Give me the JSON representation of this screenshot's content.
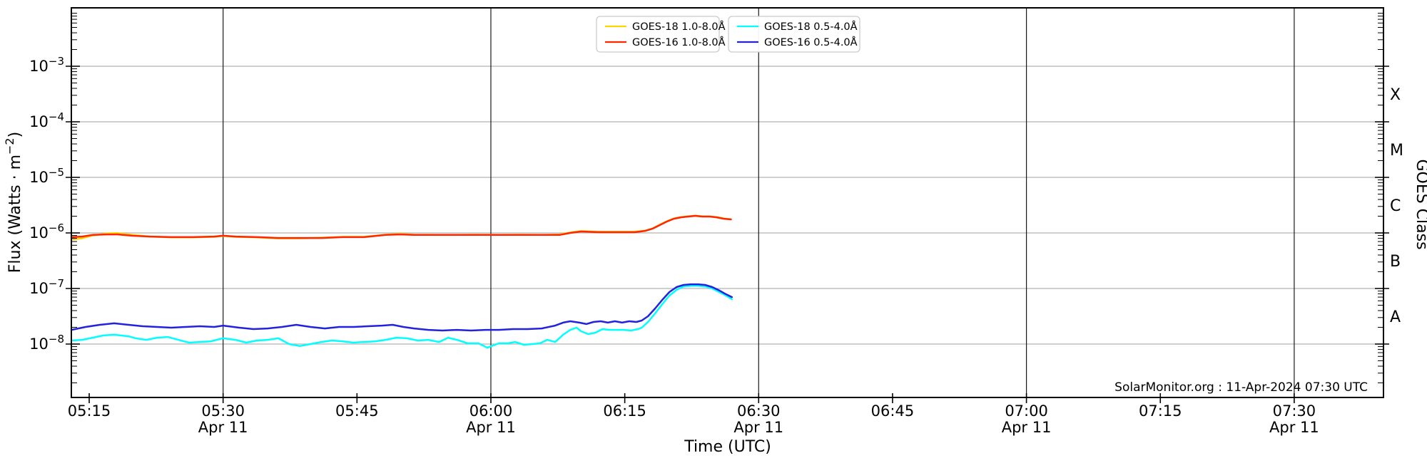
{
  "annotation": "SolarMonitor.org : 11-Apr-2024 07:30 UTC",
  "axes": {
    "x_label": "Time (UTC)",
    "y_left_label": {
      "prefix": "Flux (Watts · m",
      "sup": "−2",
      "suffix": ")"
    },
    "y_right_label": "GOES Class",
    "x_ticks": [
      {
        "t": 15,
        "label": "05:15",
        "date": null
      },
      {
        "t": 30,
        "label": "05:30",
        "date": "Apr 11"
      },
      {
        "t": 45,
        "label": "05:45",
        "date": null
      },
      {
        "t": 60,
        "label": "06:00",
        "date": "Apr 11"
      },
      {
        "t": 75,
        "label": "06:15",
        "date": null
      },
      {
        "t": 90,
        "label": "06:30",
        "date": "Apr 11"
      },
      {
        "t": 105,
        "label": "06:45",
        "date": null
      },
      {
        "t": 120,
        "label": "07:00",
        "date": "Apr 11"
      },
      {
        "t": 135,
        "label": "07:15",
        "date": null
      },
      {
        "t": 150,
        "label": "07:30",
        "date": "Apr 11"
      }
    ],
    "y_ticks": [
      {
        "exp": -3
      },
      {
        "exp": -4
      },
      {
        "exp": -5
      },
      {
        "exp": -6
      },
      {
        "exp": -7
      },
      {
        "exp": -8
      }
    ],
    "class_labels": [
      {
        "label": "X",
        "exp": -3.5
      },
      {
        "label": "M",
        "exp": -4.5
      },
      {
        "label": "C",
        "exp": -5.5
      },
      {
        "label": "B",
        "exp": -6.5
      },
      {
        "label": "A",
        "exp": -7.5
      }
    ]
  },
  "colors": {
    "h_grid": "#b3b3b3",
    "v_grid": "#1a1a1a",
    "axis": "#000000",
    "legend_border": "#cccccc"
  },
  "chart_data": {
    "type": "line",
    "title": "",
    "xlabel": "Time (UTC)",
    "ylabel": "Flux (Watts · m^-2)",
    "ylabel_right": "GOES Class",
    "x_unit": "minutes after 05:00 UTC on 11-Apr-2024",
    "xlim_minutes": [
      13,
      160
    ],
    "xlim_utc": [
      "05:13",
      "07:40"
    ],
    "ylim": [
      1.1e-09,
      0.011
    ],
    "yscale": "log",
    "grid": true,
    "legend_position": "top center, two boxes",
    "gridlines": {
      "x_minutes": [
        30,
        60,
        90,
        120,
        150
      ],
      "x_utc": [
        "05:30",
        "06:00",
        "06:30",
        "07:00",
        "07:30"
      ],
      "y_values": [
        0.001,
        0.0001,
        1e-05,
        1e-06,
        1e-07,
        1e-08
      ]
    },
    "series": [
      {
        "name": "GOES-18 1.0-8.0Å",
        "color": "#FFD400",
        "points": [
          [
            13.0,
            7.6e-07
          ],
          [
            14.2,
            8e-07
          ],
          [
            15.4,
            9e-07
          ],
          [
            17.0,
            9.8e-07
          ],
          [
            18.2,
            9.9e-07
          ],
          [
            19.8,
            9.2e-07
          ],
          [
            21.8,
            8.6e-07
          ],
          [
            24.2,
            8.3e-07
          ],
          [
            26.6,
            8.3e-07
          ],
          [
            29.0,
            8.5e-07
          ],
          [
            30.0,
            8.8e-07
          ],
          [
            31.4,
            8.5e-07
          ],
          [
            33.8,
            8.3e-07
          ],
          [
            36.2,
            8e-07
          ],
          [
            38.6,
            8e-07
          ],
          [
            41.0,
            8.2e-07
          ],
          [
            43.4,
            8.5e-07
          ],
          [
            45.8,
            8.5e-07
          ],
          [
            48.2,
            9.3e-07
          ],
          [
            49.8,
            9.6e-07
          ],
          [
            51.4,
            9.3e-07
          ],
          [
            53.8,
            9.2e-07
          ],
          [
            56.2,
            9.2e-07
          ],
          [
            58.6,
            9.3e-07
          ],
          [
            60.9,
            9.2e-07
          ],
          [
            63.3,
            9.3e-07
          ],
          [
            65.7,
            9.2e-07
          ],
          [
            67.7,
            9.4e-07
          ],
          [
            68.9,
            1.02e-06
          ],
          [
            70.1,
            1.08e-06
          ],
          [
            72.1,
            1.05e-06
          ],
          [
            74.1,
            1.05e-06
          ],
          [
            76.1,
            1.05e-06
          ],
          [
            77.3,
            1.1e-06
          ],
          [
            78.1,
            1.2e-06
          ],
          [
            78.9,
            1.4e-06
          ],
          [
            79.7,
            1.62e-06
          ],
          [
            80.5,
            1.82e-06
          ],
          [
            81.3,
            1.93e-06
          ],
          [
            82.1,
            1.99e-06
          ],
          [
            82.9,
            2.05e-06
          ],
          [
            83.7,
            1.99e-06
          ],
          [
            84.5,
            1.98e-06
          ],
          [
            85.3,
            1.93e-06
          ],
          [
            86.1,
            1.82e-06
          ],
          [
            86.9,
            1.77e-06
          ]
        ]
      },
      {
        "name": "GOES-16 1.0-8.0Å",
        "color": "#FF2600",
        "points": [
          [
            13.0,
            8.4e-07
          ],
          [
            14.2,
            8.6e-07
          ],
          [
            15.4,
            9.2e-07
          ],
          [
            17.0,
            9.4e-07
          ],
          [
            18.2,
            9.4e-07
          ],
          [
            19.8,
            8.9e-07
          ],
          [
            21.8,
            8.6e-07
          ],
          [
            24.2,
            8.4e-07
          ],
          [
            26.6,
            8.4e-07
          ],
          [
            29.0,
            8.6e-07
          ],
          [
            30.0,
            8.9e-07
          ],
          [
            31.4,
            8.6e-07
          ],
          [
            33.8,
            8.4e-07
          ],
          [
            36.2,
            8.1e-07
          ],
          [
            38.6,
            8.1e-07
          ],
          [
            41.0,
            8.1e-07
          ],
          [
            43.4,
            8.4e-07
          ],
          [
            45.8,
            8.4e-07
          ],
          [
            48.2,
            9.2e-07
          ],
          [
            49.8,
            9.4e-07
          ],
          [
            51.4,
            9.2e-07
          ],
          [
            53.8,
            9.2e-07
          ],
          [
            56.2,
            9.2e-07
          ],
          [
            58.6,
            9.2e-07
          ],
          [
            60.9,
            9.2e-07
          ],
          [
            63.3,
            9.2e-07
          ],
          [
            65.7,
            9.2e-07
          ],
          [
            67.7,
            9.2e-07
          ],
          [
            68.9,
            1e-06
          ],
          [
            70.1,
            1.06e-06
          ],
          [
            72.1,
            1.03e-06
          ],
          [
            74.1,
            1.03e-06
          ],
          [
            76.1,
            1.03e-06
          ],
          [
            77.3,
            1.09e-06
          ],
          [
            78.1,
            1.19e-06
          ],
          [
            78.9,
            1.38e-06
          ],
          [
            79.7,
            1.6e-06
          ],
          [
            80.5,
            1.8e-06
          ],
          [
            81.3,
            1.91e-06
          ],
          [
            82.1,
            1.97e-06
          ],
          [
            82.9,
            2.03e-06
          ],
          [
            83.7,
            1.97e-06
          ],
          [
            84.5,
            1.97e-06
          ],
          [
            85.3,
            1.91e-06
          ],
          [
            86.1,
            1.8e-06
          ],
          [
            86.9,
            1.75e-06
          ]
        ]
      },
      {
        "name": "GOES-18 0.5-4.0Å",
        "color": "#00FFFF",
        "points": [
          [
            13.0,
            1.16e-08
          ],
          [
            14.2,
            1.19e-08
          ],
          [
            15.4,
            1.3e-08
          ],
          [
            16.6,
            1.43e-08
          ],
          [
            17.8,
            1.47e-08
          ],
          [
            19.4,
            1.38e-08
          ],
          [
            20.2,
            1.27e-08
          ],
          [
            21.4,
            1.19e-08
          ],
          [
            22.6,
            1.3e-08
          ],
          [
            23.8,
            1.34e-08
          ],
          [
            25.0,
            1.19e-08
          ],
          [
            26.2,
            1.06e-08
          ],
          [
            27.4,
            1.09e-08
          ],
          [
            28.6,
            1.12e-08
          ],
          [
            30.0,
            1.27e-08
          ],
          [
            31.4,
            1.19e-08
          ],
          [
            32.6,
            1.06e-08
          ],
          [
            33.8,
            1.16e-08
          ],
          [
            35.0,
            1.19e-08
          ],
          [
            36.2,
            1.27e-08
          ],
          [
            37.4,
            1e-08
          ],
          [
            38.6,
            9.2e-09
          ],
          [
            39.8,
            1e-08
          ],
          [
            41.0,
            1.09e-08
          ],
          [
            42.2,
            1.16e-08
          ],
          [
            43.4,
            1.12e-08
          ],
          [
            44.6,
            1.06e-08
          ],
          [
            45.8,
            1.09e-08
          ],
          [
            47.0,
            1.12e-08
          ],
          [
            48.2,
            1.19e-08
          ],
          [
            49.4,
            1.3e-08
          ],
          [
            50.6,
            1.27e-08
          ],
          [
            51.8,
            1.16e-08
          ],
          [
            53.0,
            1.19e-08
          ],
          [
            54.2,
            1.09e-08
          ],
          [
            55.2,
            1.3e-08
          ],
          [
            56.2,
            1.19e-08
          ],
          [
            57.4,
            1.03e-08
          ],
          [
            58.6,
            1.03e-08
          ],
          [
            59.6,
            8.6e-09
          ],
          [
            60.9,
            1.03e-08
          ],
          [
            61.9,
            1.03e-08
          ],
          [
            62.7,
            1.09e-08
          ],
          [
            63.7,
            9.7e-09
          ],
          [
            64.7,
            1e-08
          ],
          [
            65.5,
            1.03e-08
          ],
          [
            66.3,
            1.19e-08
          ],
          [
            67.2,
            1.09e-08
          ],
          [
            68.1,
            1.47e-08
          ],
          [
            68.9,
            1.8e-08
          ],
          [
            69.6,
            1.97e-08
          ],
          [
            70.1,
            1.7e-08
          ],
          [
            70.9,
            1.51e-08
          ],
          [
            71.7,
            1.6e-08
          ],
          [
            72.5,
            1.86e-08
          ],
          [
            73.3,
            1.8e-08
          ],
          [
            74.1,
            1.8e-08
          ],
          [
            74.9,
            1.8e-08
          ],
          [
            75.7,
            1.75e-08
          ],
          [
            76.5,
            1.86e-08
          ],
          [
            76.9,
            1.97e-08
          ],
          [
            77.6,
            2.5e-08
          ],
          [
            78.4,
            3.56e-08
          ],
          [
            79.2,
            5.22e-08
          ],
          [
            80.0,
            7.45e-08
          ],
          [
            80.8,
            9.42e-08
          ],
          [
            81.6,
            1.09e-07
          ],
          [
            82.4,
            1.12e-07
          ],
          [
            83.2,
            1.12e-07
          ],
          [
            84.0,
            1.09e-07
          ],
          [
            84.8,
            1e-07
          ],
          [
            85.6,
            8.6e-08
          ],
          [
            86.2,
            7.7e-08
          ],
          [
            87.0,
            6.4e-08
          ]
        ]
      },
      {
        "name": "GOES-16 0.5-4.0Å",
        "color": "#2222DF",
        "points": [
          [
            13.0,
            1.8e-08
          ],
          [
            14.6,
            2.03e-08
          ],
          [
            16.2,
            2.22e-08
          ],
          [
            17.8,
            2.36e-08
          ],
          [
            19.4,
            2.22e-08
          ],
          [
            21.0,
            2.09e-08
          ],
          [
            22.6,
            2.03e-08
          ],
          [
            24.2,
            1.97e-08
          ],
          [
            25.8,
            2.03e-08
          ],
          [
            27.4,
            2.09e-08
          ],
          [
            29.0,
            2.03e-08
          ],
          [
            30.0,
            2.15e-08
          ],
          [
            31.8,
            1.97e-08
          ],
          [
            33.4,
            1.86e-08
          ],
          [
            35.0,
            1.91e-08
          ],
          [
            36.6,
            2.03e-08
          ],
          [
            38.2,
            2.22e-08
          ],
          [
            39.8,
            2.03e-08
          ],
          [
            41.4,
            1.91e-08
          ],
          [
            43.0,
            2.03e-08
          ],
          [
            44.6,
            2.03e-08
          ],
          [
            46.2,
            2.09e-08
          ],
          [
            47.8,
            2.15e-08
          ],
          [
            49.0,
            2.22e-08
          ],
          [
            50.2,
            2.03e-08
          ],
          [
            51.4,
            1.91e-08
          ],
          [
            53.0,
            1.8e-08
          ],
          [
            54.6,
            1.75e-08
          ],
          [
            56.2,
            1.8e-08
          ],
          [
            57.8,
            1.75e-08
          ],
          [
            59.4,
            1.8e-08
          ],
          [
            60.9,
            1.8e-08
          ],
          [
            62.5,
            1.86e-08
          ],
          [
            64.1,
            1.86e-08
          ],
          [
            65.7,
            1.91e-08
          ],
          [
            67.2,
            2.15e-08
          ],
          [
            68.1,
            2.43e-08
          ],
          [
            68.9,
            2.57e-08
          ],
          [
            69.9,
            2.43e-08
          ],
          [
            70.7,
            2.29e-08
          ],
          [
            71.5,
            2.5e-08
          ],
          [
            72.3,
            2.57e-08
          ],
          [
            73.1,
            2.43e-08
          ],
          [
            73.9,
            2.57e-08
          ],
          [
            74.7,
            2.43e-08
          ],
          [
            75.5,
            2.57e-08
          ],
          [
            76.3,
            2.5e-08
          ],
          [
            76.9,
            2.65e-08
          ],
          [
            77.6,
            3.16e-08
          ],
          [
            78.4,
            4.38e-08
          ],
          [
            79.2,
            6.24e-08
          ],
          [
            80.0,
            8.63e-08
          ],
          [
            80.8,
            1.06e-07
          ],
          [
            81.6,
            1.16e-07
          ],
          [
            82.4,
            1.19e-07
          ],
          [
            83.2,
            1.19e-07
          ],
          [
            84.0,
            1.16e-07
          ],
          [
            84.8,
            1.06e-07
          ],
          [
            85.6,
            9.2e-08
          ],
          [
            86.2,
            8.1e-08
          ],
          [
            87.0,
            7e-08
          ]
        ]
      }
    ]
  },
  "legend": {
    "boxes": [
      {
        "entries": [
          {
            "series": 0
          },
          {
            "series": 1
          }
        ]
      },
      {
        "entries": [
          {
            "series": 2
          },
          {
            "series": 3
          }
        ]
      }
    ]
  }
}
